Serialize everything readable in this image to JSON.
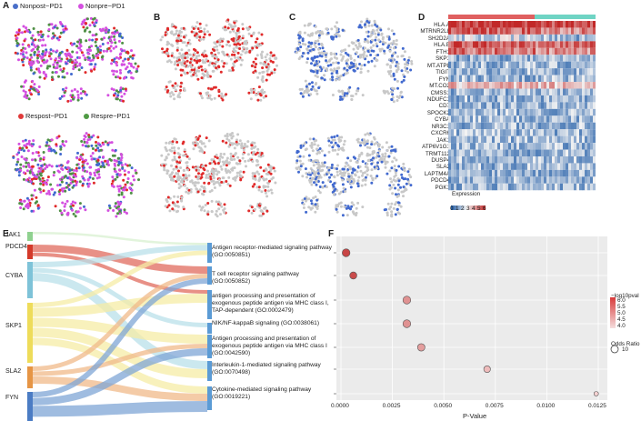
{
  "panels": {
    "A": "A",
    "B": "B",
    "C": "C",
    "D": "D",
    "E": "E",
    "F": "F"
  },
  "legend_top": [
    {
      "label": "Nonpost−PD1",
      "color": "#4a6fc9"
    },
    {
      "label": "Nonpre−PD1",
      "color": "#d44fe0"
    }
  ],
  "legend_mid": [
    {
      "label": "Respost−PD1",
      "color": "#e03a3a"
    },
    {
      "label": "Respre−PD1",
      "color": "#4f9a44"
    }
  ],
  "colors": {
    "grey": "#c8c8c8",
    "red": "#e02a2a",
    "blue": "#4169cf",
    "purple": "#d44fe0",
    "green": "#4f8f45",
    "heat_low": "#1d5aa6",
    "heat_mid": "#f3f3f3",
    "heat_high": "#c22828",
    "bar_left": "#e06060",
    "bar_right": "#6fd4c4"
  },
  "heatmap": {
    "genes": [
      "HLA.A",
      "MTRNR2L8",
      "SH2D2A",
      "HLA.B",
      "FTH1",
      "SKP1",
      "MT.ATP8",
      "TIGIT",
      "FYN",
      "MT.CO2",
      "CMSS1",
      "NDUFC1",
      "CD7",
      "SPOCK2",
      "CYBA",
      "NR3C1",
      "CXCR6",
      "JAK1",
      "ATP6V1G1",
      "TRMT112",
      "DUSP4",
      "SLA2",
      "LAPTM4A",
      "PDCD4",
      "PGK1"
    ],
    "legend_title": "Expression",
    "legend_ticks": [
      "0",
      "1",
      "2",
      "3",
      "4",
      "5",
      "6"
    ]
  },
  "sankey": {
    "genes": [
      "JAK1",
      "PDCD4",
      "CYBA",
      "SKP1",
      "SLA2",
      "FYN"
    ],
    "pathways": [
      "Antigen receptor-mediated signaling pathway (GO:0050851)",
      "T cell receptor signaling pathway (GO:0050852)",
      "antigen processing and presentation of exogenous peptide antigen via MHC class I, TAP-dependent (GO:0002479)",
      "NIK/NF-kappaB signaling (GO:0038061)",
      "Antigen processing and presentation of exogenous peptide antigen via MHC class I (GO:0042590)",
      "Interleukin-1-mediated signaling pathway (GO:0070498)",
      "Cytokine-mediated signaling pathway (GO:0019221)"
    ]
  },
  "chart_data": {
    "type": "scatter",
    "title": "",
    "xlabel": "P-Value",
    "ylabel": "",
    "xlim": [
      0,
      0.0125
    ],
    "xticks": [
      "0.0000",
      "0.0025",
      "0.0050",
      "0.0075",
      "0.0100",
      "0.0125"
    ],
    "x": [
      0.00025,
      0.0006,
      0.0032,
      0.0032,
      0.0039,
      0.0071,
      0.0124
    ],
    "neg_log10p": [
      6.3,
      6.2,
      5.0,
      5.0,
      4.8,
      4.3,
      3.9
    ],
    "odds_ratio": [
      14,
      12,
      14,
      14,
      13,
      11,
      5
    ],
    "categories": [
      "Antigen receptor-mediated signaling pathway (GO:0050851)",
      "T cell receptor signaling pathway (GO:0050852)",
      "antigen processing and presentation of exogenous peptide antigen via MHC class I, TAP-dependent (GO:0002479)",
      "NIK/NF-kappaB signaling (GO:0038061)",
      "Antigen processing and presentation of exogenous peptide antigen via MHC class I (GO:0042590)",
      "Interleukin-1-mediated signaling pathway (GO:0070498)",
      "Cytokine-mediated signaling pathway (GO:0019221)"
    ],
    "color_legend": {
      "title": "−log10pval",
      "ticks": [
        "6.0",
        "5.5",
        "5.0",
        "4.5",
        "4.0"
      ]
    },
    "size_legend": {
      "title": "Odds Ratio",
      "ticks": [
        "10"
      ]
    }
  }
}
